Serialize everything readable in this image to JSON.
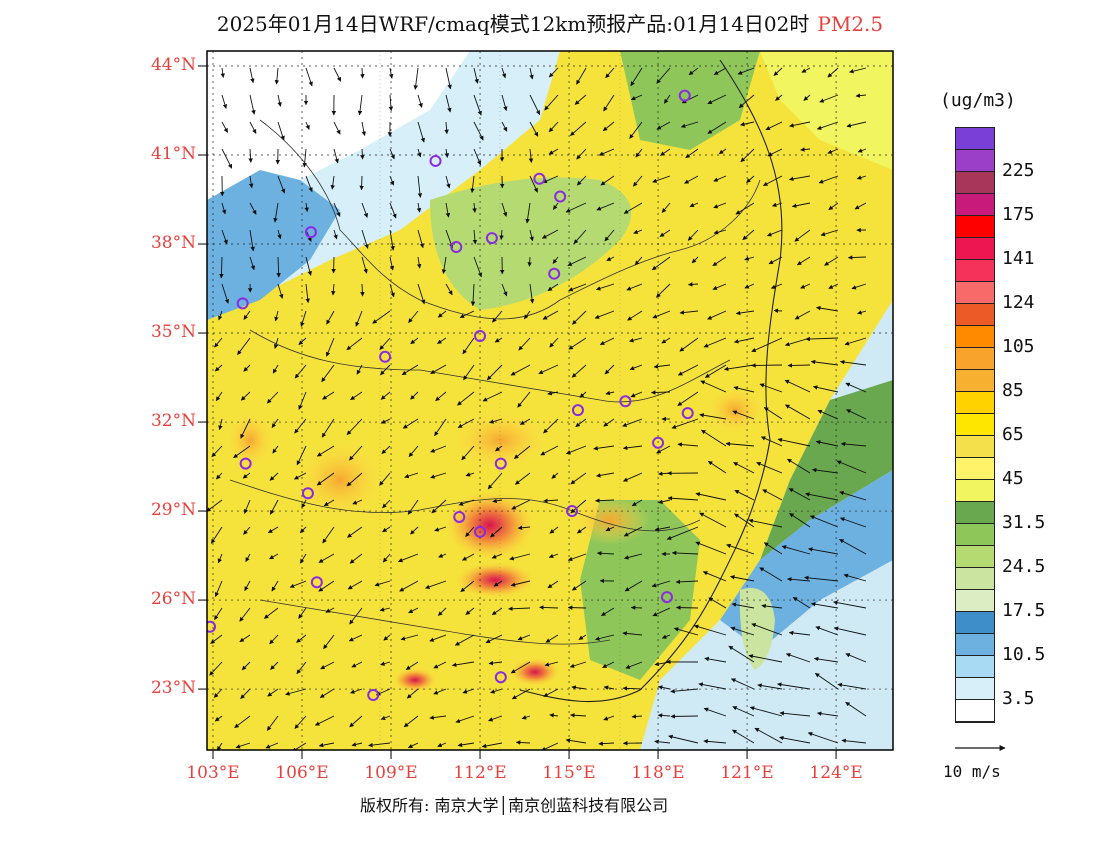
{
  "header": {
    "title": "2025年01月14日WRF/cmaq模式12km预报产品:01月14日02时",
    "pollutant": "PM2.5"
  },
  "map": {
    "lat_labels": [
      "44°N",
      "41°N",
      "38°N",
      "35°N",
      "32°N",
      "29°N",
      "26°N",
      "23°N"
    ],
    "lon_labels": [
      "103°E",
      "106°E",
      "109°E",
      "112°E",
      "115°E",
      "118°E",
      "121°E",
      "124°E"
    ],
    "frame_color": "#000000",
    "sea_color": "#cfe9f5"
  },
  "legend": {
    "unit": "(ug/m3)",
    "bins": [
      {
        "color": "#7a3fd6"
      },
      {
        "color": "#9c3fc8",
        "label": "225"
      },
      {
        "color": "#a8365a"
      },
      {
        "color": "#c81a7a",
        "label": "175"
      },
      {
        "color": "#ff0000"
      },
      {
        "color": "#ee1650",
        "label": "141"
      },
      {
        "color": "#f4325a"
      },
      {
        "color": "#f86a6a",
        "label": "124"
      },
      {
        "color": "#ec5a28"
      },
      {
        "color": "#ff8a00",
        "label": "105"
      },
      {
        "color": "#f7a32c"
      },
      {
        "color": "#f7b030",
        "label": "85"
      },
      {
        "color": "#ffd200"
      },
      {
        "color": "#ffe600",
        "label": "65"
      },
      {
        "color": "#f4e04a"
      },
      {
        "color": "#fff36a",
        "label": "45"
      },
      {
        "color": "#f0f560"
      },
      {
        "color": "#6aa84f",
        "label": "31.5"
      },
      {
        "color": "#8fc65a"
      },
      {
        "color": "#b6da72",
        "label": "24.5"
      },
      {
        "color": "#cbe4a0"
      },
      {
        "color": "#dcedc4",
        "label": "17.5"
      },
      {
        "color": "#3d8ec9"
      },
      {
        "color": "#6cb1e0",
        "label": "10.5"
      },
      {
        "color": "#a8dbf3"
      },
      {
        "color": "#d6eff9",
        "label": "3.5"
      },
      {
        "color": "#ffffff"
      }
    ]
  },
  "wind_reference": {
    "label": "10 m/s"
  },
  "footer": {
    "copyright": "版权所有: 南京大学│南京创蓝科技有限公司"
  },
  "stations": [
    [
      118.9,
      43.0
    ],
    [
      110.5,
      40.8
    ],
    [
      114.0,
      40.2
    ],
    [
      114.7,
      39.6
    ],
    [
      106.3,
      38.4
    ],
    [
      111.2,
      37.9
    ],
    [
      112.4,
      38.2
    ],
    [
      114.5,
      37.0
    ],
    [
      104.0,
      36.0
    ],
    [
      112.0,
      34.9
    ],
    [
      108.8,
      34.2
    ],
    [
      115.3,
      32.4
    ],
    [
      116.9,
      32.7
    ],
    [
      119.0,
      32.3
    ],
    [
      118.0,
      31.3
    ],
    [
      104.1,
      30.6
    ],
    [
      106.2,
      29.6
    ],
    [
      112.7,
      30.6
    ],
    [
      115.1,
      29.0
    ],
    [
      111.3,
      28.8
    ],
    [
      112.0,
      28.3
    ],
    [
      106.5,
      26.6
    ],
    [
      102.9,
      25.1
    ],
    [
      118.3,
      26.1
    ],
    [
      108.4,
      22.8
    ],
    [
      112.7,
      23.4
    ]
  ]
}
